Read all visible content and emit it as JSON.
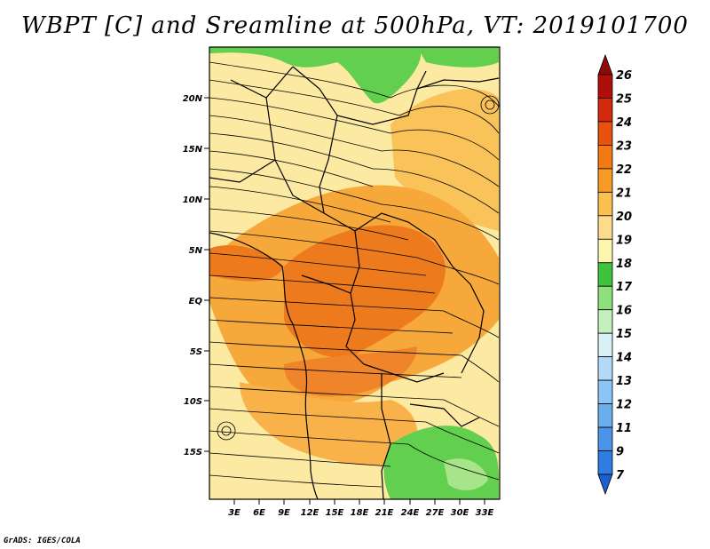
{
  "title": "WBPT [C] and Sreamline at 500hPa, VT: 2019101700",
  "credit": "GrADS: IGES/COLA",
  "map": {
    "lat_labels": [
      "20N",
      "15N",
      "10N",
      "5N",
      "EQ",
      "5S",
      "10S",
      "15S"
    ],
    "lon_labels": [
      "3E",
      "6E",
      "9E",
      "12E",
      "15E",
      "18E",
      "21E",
      "24E",
      "27E",
      "30E",
      "33E"
    ]
  },
  "colorbar": {
    "labels": [
      "7",
      "9",
      "11",
      "12",
      "13",
      "14",
      "15",
      "16",
      "17",
      "18",
      "19",
      "20",
      "21",
      "22",
      "23",
      "24",
      "25",
      "26"
    ],
    "colors": [
      "#1e5fd0",
      "#2f7de0",
      "#4a95ea",
      "#6aaef0",
      "#8cc4f5",
      "#b2daf8",
      "#d8f0f6",
      "#c4f0bc",
      "#8ee07c",
      "#3fc23c",
      "#fdf6b0",
      "#fcdc8a",
      "#fbbf52",
      "#f79b26",
      "#f27a14",
      "#e8520e",
      "#d12a0c",
      "#b00e0a",
      "#8e0a08"
    ]
  }
}
